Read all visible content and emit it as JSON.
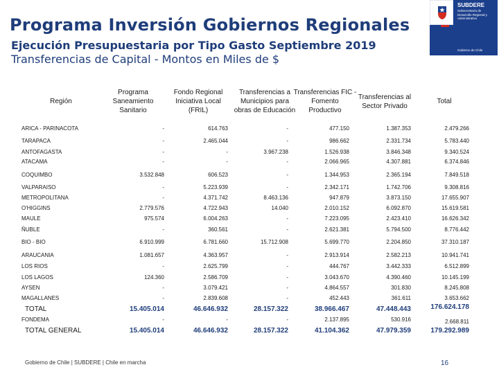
{
  "title": "Programa Inversión Gobiernos Regionales",
  "subtitle": "Ejecución Presupuestaria por Tipo Gasto Septiembre 2019",
  "subtitle2": "Transferencias de Capital  - Montos en Miles de $",
  "logo": {
    "brand": "SUBDERE",
    "sub": "Subsecretaría de Desarrollo Regional y Administrativo",
    "gob": "Gobierno de Chile",
    "crest_icon": "chile-coat-of-arms-icon",
    "colors": {
      "blue": "#1c3f8c",
      "red": "#d52b1e"
    }
  },
  "table": {
    "headers": {
      "region": "Región",
      "saneamiento": [
        "Programa",
        "Saneamiento",
        "Sanitario"
      ],
      "fril": [
        "Fondo Regional",
        "Iniciativa Local",
        "(FRIL)"
      ],
      "educacion": [
        "Transferencias a",
        "Municipios para",
        "obras de Educación"
      ],
      "fic": [
        "Transferencias FIC -",
        "Fomento",
        "Productivo"
      ],
      "privado": [
        "Transferencias al",
        "Sector Privado"
      ],
      "total": "Total"
    },
    "rows": [
      {
        "region": "ARICA - PARINACOTA",
        "c1": "-",
        "c2": "614.763",
        "c3": "-",
        "c4": "477.150",
        "c5": "1.387.353",
        "c6": "2.479.266"
      },
      {
        "region": "TARAPACA",
        "c1": "-",
        "c2": "2.465.044",
        "c3": "-",
        "c4": "986.662",
        "c5": "2.331.734",
        "c6": "5.783.440"
      },
      {
        "region": "ANTOFAGASTA",
        "c1": "-",
        "c2": "-",
        "c3": "3.967.238",
        "c4": "1.526.938",
        "c5": "3.846.348",
        "c6": "9.340.524"
      },
      {
        "region": "ATACAMA",
        "c1": "-",
        "c2": "-",
        "c3": "-",
        "c4": "2.066.965",
        "c5": "4.307.881",
        "c6": "6.374.846"
      },
      {
        "region": "COQUIMBO",
        "c1": "3.532.848",
        "c2": "606.523",
        "c3": "-",
        "c4": "1.344.953",
        "c5": "2.365.194",
        "c6": "7.849.518"
      },
      {
        "region": "VALPARAISO",
        "c1": "-",
        "c2": "5.223.939",
        "c3": "-",
        "c4": "2.342.171",
        "c5": "1.742.706",
        "c6": "9.308.816"
      },
      {
        "region": "METROPOLITANA",
        "c1": "-",
        "c2": "4.371.742",
        "c3": "8.463.136",
        "c4": "947.879",
        "c5": "3.873.150",
        "c6": "17.655.907"
      },
      {
        "region": "O'HIGGINS",
        "c1": "2.779.576",
        "c2": "4.722.943",
        "c3": "14.040",
        "c4": "2.010.152",
        "c5": "6.092.870",
        "c6": "15.619.581"
      },
      {
        "region": "MAULE",
        "c1": "975.574",
        "c2": "6.004.263",
        "c3": "-",
        "c4": "7.223.095",
        "c5": "2.423.410",
        "c6": "16.626.342"
      },
      {
        "region": "ÑUBLE",
        "c1": "-",
        "c2": "360.561",
        "c3": "-",
        "c4": "2.621.381",
        "c5": "5.794.500",
        "c6": "8.776.442"
      },
      {
        "region": "BIO - BIO",
        "c1": "6.910.999",
        "c2": "6.781.660",
        "c3": "15.712.908",
        "c4": "5.699.770",
        "c5": "2.204.850",
        "c6": "37.310.187"
      },
      {
        "region": "ARAUCANIA",
        "c1": "1.081.657",
        "c2": "4.363.957",
        "c3": "-",
        "c4": "2.913.914",
        "c5": "2.582.213",
        "c6": "10.941.741"
      },
      {
        "region": "LOS RIOS",
        "c1": "-",
        "c2": "2.625.799",
        "c3": "-",
        "c4": "444.767",
        "c5": "3.442.333",
        "c6": "6.512.899"
      },
      {
        "region": "LOS LAGOS",
        "c1": "124.360",
        "c2": "2.586.709",
        "c3": "-",
        "c4": "3.043.670",
        "c5": "4.390.460",
        "c6": "10.145.199"
      },
      {
        "region": "AYSEN",
        "c1": "-",
        "c2": "3.079.421",
        "c3": "-",
        "c4": "4.864.557",
        "c5": "301.830",
        "c6": "8.245.808"
      },
      {
        "region": "MAGALLANES",
        "c1": "-",
        "c2": "2.839.608",
        "c3": "-",
        "c4": "452.443",
        "c5": "361.611",
        "c6": "3.653.662"
      }
    ],
    "total": {
      "region": "TOTAL",
      "c1": "15.405.014",
      "c2": "46.646.932",
      "c3": "28.157.322",
      "c4": "38.966.467",
      "c5": "47.448.443",
      "c6": "176.624.178"
    },
    "fondema": {
      "region": "FONDEMA",
      "c1": "-",
      "c2": "-",
      "c3": "-",
      "c4": "2.137.895",
      "c5": "530.916",
      "c6": "2.668.811"
    },
    "total_general": {
      "region": "TOTAL GENERAL",
      "c1": "15.405.014",
      "c2": "46.646.932",
      "c3": "28.157.322",
      "c4": "41.104.362",
      "c5": "47.979.359",
      "c6": "179.292.989"
    }
  },
  "footer": "Gobierno de Chile | SUBDERE | Chile en marcha",
  "page_number": "16"
}
